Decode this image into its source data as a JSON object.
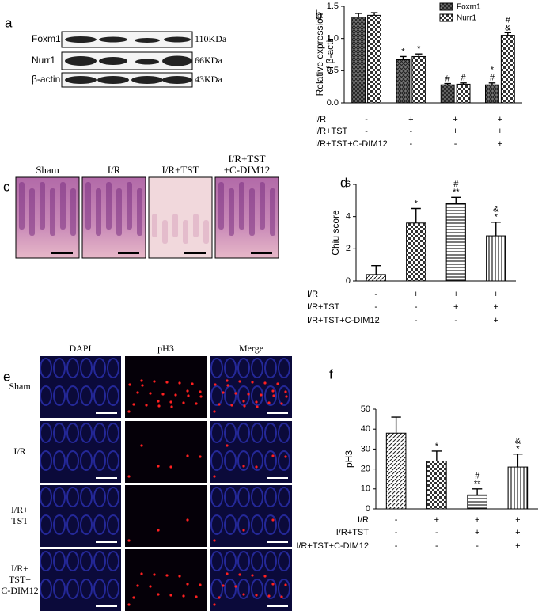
{
  "panel_labels": [
    "a",
    "b",
    "c",
    "d",
    "e",
    "f"
  ],
  "blot": {
    "rows": [
      "Foxm1",
      "Nurr1",
      "β-actin"
    ],
    "sizes": [
      "110KDa",
      "66KDa",
      "43KDa"
    ]
  },
  "histology": {
    "labels": [
      [
        "Sham"
      ],
      [
        "I/R"
      ],
      [
        "I/R+TST"
      ],
      [
        "I/R+TST",
        "+C-DIM12"
      ]
    ]
  },
  "immunofluorescence": {
    "columns": [
      "DAPI",
      "pH3",
      "Merge"
    ],
    "rows": [
      [
        "Sham"
      ],
      [
        "I/R"
      ],
      [
        "I/R+",
        "TST"
      ],
      [
        "I/R+",
        "TST+",
        "C-DIM12"
      ]
    ]
  },
  "chart_data": [
    {
      "type": "bar",
      "ylabel": [
        "Relative expression",
        "of β-actin"
      ],
      "ylim": [
        0,
        1.5
      ],
      "yticks": [
        {
          "value": 0,
          "label": "0.0"
        },
        {
          "value": 0.5,
          "label": "0.5"
        },
        {
          "value": 1,
          "label": "1.0"
        },
        {
          "value": 1.5,
          "label": "1.5"
        }
      ],
      "series": [
        {
          "name": "Foxm1",
          "values": [
            1.33,
            0.67,
            0.28,
            0.28
          ],
          "errors": [
            0.06,
            0.05,
            0.02,
            0.03
          ],
          "markers": [
            null,
            [
              "*"
            ],
            [
              "#"
            ],
            [
              "*",
              "#"
            ]
          ]
        },
        {
          "name": "Nurr1",
          "values": [
            1.36,
            0.72,
            0.29,
            1.05
          ],
          "errors": [
            0.04,
            0.04,
            0.02,
            0.04
          ],
          "markers": [
            null,
            [
              "*"
            ],
            [
              "#"
            ],
            [
              "#",
              "&"
            ]
          ]
        }
      ],
      "conditions": [
        {
          "label": "I/R",
          "signs": [
            "-",
            "+",
            "+",
            "+"
          ]
        },
        {
          "label": "I/R+TST",
          "signs": [
            "-",
            "-",
            "+",
            "+"
          ]
        },
        {
          "label": "I/R+TST+C-DIM12",
          "signs": [
            "-",
            "-",
            "-",
            "+"
          ]
        }
      ]
    },
    {
      "type": "bar",
      "ylabel": [
        "Chiu score"
      ],
      "ylim": [
        0,
        6
      ],
      "yticks": [
        0,
        2,
        4,
        6
      ],
      "values": [
        0.4,
        3.6,
        4.8,
        2.8
      ],
      "errors": [
        0.55,
        0.9,
        0.4,
        0.85
      ],
      "markers": [
        null,
        [
          "*"
        ],
        [
          "#",
          "**"
        ],
        [
          "&",
          "*"
        ]
      ],
      "conditions": [
        {
          "label": "I/R",
          "signs": [
            "-",
            "+",
            "+",
            "+"
          ]
        },
        {
          "label": "I/R+TST",
          "signs": [
            "-",
            "-",
            "+",
            "+"
          ]
        },
        {
          "label": "I/R+TST+C-DIM12",
          "signs": [
            "-",
            "-",
            "-",
            "+"
          ]
        }
      ]
    },
    {
      "type": "bar",
      "ylabel": [
        "pH3"
      ],
      "ylim": [
        0,
        50
      ],
      "yticks": [
        0,
        10,
        20,
        30,
        40,
        50
      ],
      "values": [
        38,
        24,
        7,
        21
      ],
      "errors": [
        8,
        5,
        3,
        6.5
      ],
      "markers": [
        null,
        [
          "*"
        ],
        [
          "#",
          "**"
        ],
        [
          "&",
          "*"
        ]
      ],
      "conditions": [
        {
          "label": "I/R",
          "signs": [
            "-",
            "+",
            "+",
            "+"
          ]
        },
        {
          "label": "I/R+TST",
          "signs": [
            "-",
            "-",
            "+",
            "+"
          ]
        },
        {
          "label": "I/R+TST+C-DIM12",
          "signs": [
            "-",
            "-",
            "-",
            "+"
          ]
        }
      ]
    }
  ]
}
